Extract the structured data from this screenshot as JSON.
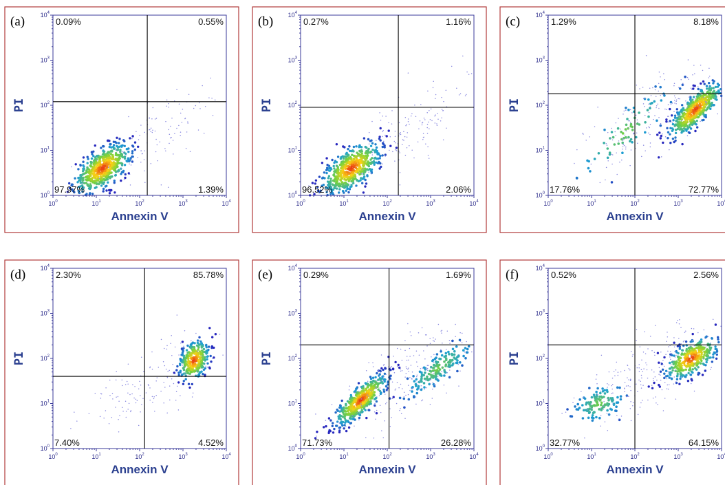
{
  "chart_data": [
    {
      "type": "scatter",
      "panel": "(a)",
      "xlabel": "Annexin V",
      "ylabel": "PI",
      "xscale": "log",
      "yscale": "log",
      "xlim": [
        1,
        10000
      ],
      "ylim": [
        1,
        10000
      ],
      "xticks": [
        "10^0",
        "10^1",
        "10^2",
        "10^3",
        "10^4"
      ],
      "yticks": [
        "10^0",
        "10^1",
        "10^2",
        "10^3",
        "10^4"
      ],
      "gate": {
        "x": 150,
        "y": 120
      },
      "quadrants": {
        "upper_left": "0.09%",
        "upper_right": "0.55%",
        "lower_left": "97.97%",
        "lower_right": "1.39%"
      },
      "clusters": [
        {
          "x": 14,
          "y": 4,
          "sx": 0.32,
          "sy": 0.27,
          "n": 600,
          "rho": 0.6,
          "kind": "dense"
        },
        {
          "x": 300,
          "y": 25,
          "sx": 0.7,
          "sy": 0.55,
          "n": 110,
          "rho": 0.7,
          "kind": "sparse"
        }
      ]
    },
    {
      "type": "scatter",
      "panel": "(b)",
      "xlabel": "Annexin V",
      "ylabel": "PI",
      "xscale": "log",
      "yscale": "log",
      "xlim": [
        1,
        10000
      ],
      "ylim": [
        1,
        10000
      ],
      "xticks": [
        "10^0",
        "10^1",
        "10^2",
        "10^3",
        "10^4"
      ],
      "yticks": [
        "10^0",
        "10^1",
        "10^2",
        "10^3",
        "10^4"
      ],
      "gate": {
        "x": 180,
        "y": 90
      },
      "quadrants": {
        "upper_left": "0.27%",
        "upper_right": "1.16%",
        "lower_left": "96.52%",
        "lower_right": "2.06%"
      },
      "clusters": [
        {
          "x": 15,
          "y": 4,
          "sx": 0.33,
          "sy": 0.28,
          "n": 600,
          "rho": 0.6,
          "kind": "dense"
        },
        {
          "x": 350,
          "y": 30,
          "sx": 0.7,
          "sy": 0.55,
          "n": 140,
          "rho": 0.7,
          "kind": "sparse"
        }
      ]
    },
    {
      "type": "scatter",
      "panel": "(c)",
      "xlabel": "Annexin V",
      "ylabel": "PI",
      "xscale": "log",
      "yscale": "log",
      "xlim": [
        1,
        10000
      ],
      "ylim": [
        1,
        10000
      ],
      "xticks": [
        "10^0",
        "10^1",
        "10^2",
        "10^3",
        "10^4"
      ],
      "yticks": [
        "10^0",
        "10^1",
        "10^2",
        "10^3",
        "10^4"
      ],
      "gate": {
        "x": 100,
        "y": 180
      },
      "quadrants": {
        "upper_left": "1.29%",
        "upper_right": "8.18%",
        "lower_left": "17.76%",
        "lower_right": "72.77%"
      },
      "clusters": [
        {
          "x": 2500,
          "y": 80,
          "sx": 0.3,
          "sy": 0.3,
          "n": 520,
          "rho": 0.8,
          "kind": "dense"
        },
        {
          "x": 60,
          "y": 25,
          "sx": 0.55,
          "sy": 0.5,
          "n": 70,
          "rho": 0.85,
          "kind": "medium"
        },
        {
          "x": 300,
          "y": 60,
          "sx": 0.8,
          "sy": 0.6,
          "n": 180,
          "rho": 0.7,
          "kind": "sparse"
        }
      ]
    },
    {
      "type": "scatter",
      "panel": "(d)",
      "xlabel": "Annexin V",
      "ylabel": "PI",
      "xscale": "log",
      "yscale": "log",
      "xlim": [
        1,
        10000
      ],
      "ylim": [
        1,
        10000
      ],
      "xticks": [
        "10^0",
        "10^1",
        "10^2",
        "10^3",
        "10^4"
      ],
      "yticks": [
        "10^0",
        "10^1",
        "10^2",
        "10^3",
        "10^4"
      ],
      "gate": {
        "x": 130,
        "y": 40
      },
      "quadrants": {
        "upper_left": "2.30%",
        "upper_right": "85.78%",
        "lower_left": "7.40%",
        "lower_right": "4.52%"
      },
      "clusters": [
        {
          "x": 1800,
          "y": 90,
          "sx": 0.17,
          "sy": 0.22,
          "n": 320,
          "rho": 0.3,
          "kind": "dense"
        },
        {
          "x": 150,
          "y": 30,
          "sx": 0.75,
          "sy": 0.55,
          "n": 140,
          "rho": 0.7,
          "kind": "sparse"
        }
      ]
    },
    {
      "type": "scatter",
      "panel": "(e)",
      "xlabel": "Annexin V",
      "ylabel": "PI",
      "xscale": "log",
      "yscale": "log",
      "xlim": [
        1,
        10000
      ],
      "ylim": [
        1,
        10000
      ],
      "xticks": [
        "10^0",
        "10^1",
        "10^2",
        "10^3",
        "10^4"
      ],
      "yticks": [
        "10^0",
        "10^1",
        "10^2",
        "10^3",
        "10^4"
      ],
      "gate": {
        "x": 110,
        "y": 200
      },
      "quadrants": {
        "upper_left": "0.29%",
        "upper_right": "1.69%",
        "lower_left": "71.73%",
        "lower_right": "26.28%"
      },
      "clusters": [
        {
          "x": 25,
          "y": 12,
          "sx": 0.3,
          "sy": 0.28,
          "n": 520,
          "rho": 0.8,
          "kind": "dense"
        },
        {
          "x": 1500,
          "y": 60,
          "sx": 0.38,
          "sy": 0.3,
          "n": 160,
          "rho": 0.85,
          "kind": "medium"
        },
        {
          "x": 200,
          "y": 30,
          "sx": 0.8,
          "sy": 0.6,
          "n": 220,
          "rho": 0.7,
          "kind": "sparse"
        }
      ]
    },
    {
      "type": "scatter",
      "panel": "(f)",
      "xlabel": "Annexin V",
      "ylabel": "PI",
      "xscale": "log",
      "yscale": "log",
      "xlim": [
        1,
        10000
      ],
      "ylim": [
        1,
        10000
      ],
      "xticks": [
        "10^0",
        "10^1",
        "10^2",
        "10^3",
        "10^4"
      ],
      "yticks": [
        "10^0",
        "10^1",
        "10^2",
        "10^3",
        "10^4"
      ],
      "gate": {
        "x": 100,
        "y": 200
      },
      "quadrants": {
        "upper_left": "0.52%",
        "upper_right": "2.56%",
        "lower_left": "32.77%",
        "lower_right": "64.15%"
      },
      "clusters": [
        {
          "x": 2000,
          "y": 100,
          "sx": 0.3,
          "sy": 0.23,
          "n": 380,
          "rho": 0.6,
          "kind": "dense"
        },
        {
          "x": 15,
          "y": 10,
          "sx": 0.28,
          "sy": 0.2,
          "n": 120,
          "rho": 0.4,
          "kind": "medium"
        },
        {
          "x": 200,
          "y": 40,
          "sx": 0.8,
          "sy": 0.6,
          "n": 220,
          "rho": 0.7,
          "kind": "sparse"
        }
      ]
    }
  ]
}
